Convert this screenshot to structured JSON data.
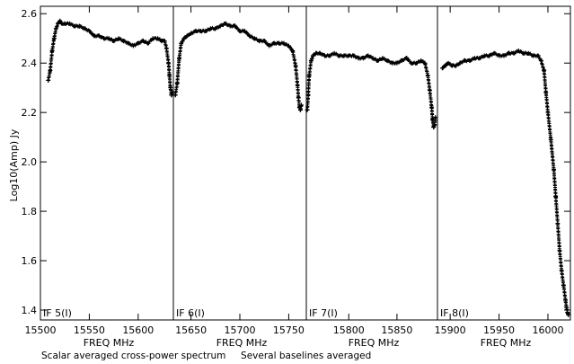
{
  "chart_data": {
    "type": "scatter",
    "ylabel": "Log10(Amp) Jy",
    "ylim": [
      1.36,
      2.63
    ],
    "yticks": [
      "1.4",
      "1.6",
      "1.8",
      "2.0",
      "2.2",
      "2.4",
      "2.6"
    ],
    "ytick_values": [
      1.4,
      1.6,
      1.8,
      2.0,
      2.2,
      2.4,
      2.6
    ],
    "marker": "plus",
    "color": "#000000",
    "grid": false,
    "caption": "Scalar averaged cross-power spectrum     Several baselines averaged",
    "panels": [
      {
        "label": "IF 5(I)",
        "xlabel": "FREQ MHz",
        "xlim": [
          15500,
          15636
        ],
        "xticks": [
          "15500",
          "15550",
          "15600"
        ],
        "xtick_values": [
          15500,
          15550,
          15600
        ],
        "x": [
          15508,
          15510,
          15512,
          15514,
          15516,
          15518,
          15520,
          15522,
          15525,
          15530,
          15535,
          15540,
          15545,
          15550,
          15555,
          15560,
          15565,
          15570,
          15575,
          15580,
          15585,
          15590,
          15595,
          15600,
          15605,
          15610,
          15615,
          15620,
          15624,
          15627,
          15629,
          15631,
          15632,
          15633,
          15634,
          15635
        ],
        "y": [
          2.33,
          2.37,
          2.45,
          2.5,
          2.54,
          2.56,
          2.57,
          2.56,
          2.56,
          2.56,
          2.55,
          2.55,
          2.54,
          2.53,
          2.51,
          2.51,
          2.5,
          2.5,
          2.49,
          2.5,
          2.49,
          2.48,
          2.47,
          2.48,
          2.49,
          2.48,
          2.5,
          2.5,
          2.49,
          2.49,
          2.46,
          2.4,
          2.35,
          2.3,
          2.27,
          2.28
        ]
      },
      {
        "label": "IF 6(I)",
        "xlabel": "FREQ MHz",
        "xlim": [
          15632,
          15768
        ],
        "xticks": [
          "15650",
          "15700",
          "15750"
        ],
        "xtick_values": [
          15650,
          15700,
          15750
        ],
        "x": [
          15634,
          15636,
          15638,
          15640,
          15643,
          15646,
          15650,
          15655,
          15660,
          15665,
          15670,
          15675,
          15680,
          15685,
          15690,
          15695,
          15700,
          15705,
          15710,
          15715,
          15720,
          15725,
          15730,
          15735,
          15740,
          15745,
          15750,
          15754,
          15757,
          15759,
          15760,
          15761,
          15762,
          15763
        ],
        "y": [
          2.27,
          2.32,
          2.42,
          2.48,
          2.5,
          2.51,
          2.52,
          2.53,
          2.53,
          2.53,
          2.54,
          2.54,
          2.55,
          2.56,
          2.55,
          2.55,
          2.53,
          2.53,
          2.51,
          2.5,
          2.49,
          2.49,
          2.47,
          2.48,
          2.48,
          2.48,
          2.47,
          2.45,
          2.39,
          2.31,
          2.26,
          2.22,
          2.21,
          2.23
        ]
      },
      {
        "label": "IF 7(I)",
        "xlabel": "FREQ MHz",
        "xlim": [
          15756,
          15892
        ],
        "xticks": [
          "15800",
          "15850"
        ],
        "xtick_values": [
          15800,
          15850
        ],
        "x": [
          15757,
          15758,
          15759,
          15761,
          15763,
          15766,
          15770,
          15775,
          15780,
          15785,
          15790,
          15795,
          15800,
          15805,
          15810,
          15815,
          15820,
          15825,
          15830,
          15835,
          15840,
          15845,
          15850,
          15855,
          15860,
          15865,
          15870,
          15875,
          15879,
          15882,
          15884,
          15886,
          15887,
          15888,
          15889,
          15890
        ],
        "y": [
          2.21,
          2.27,
          2.35,
          2.41,
          2.43,
          2.44,
          2.44,
          2.43,
          2.43,
          2.44,
          2.43,
          2.43,
          2.43,
          2.43,
          2.42,
          2.42,
          2.43,
          2.42,
          2.41,
          2.42,
          2.41,
          2.4,
          2.4,
          2.41,
          2.42,
          2.4,
          2.4,
          2.41,
          2.4,
          2.35,
          2.29,
          2.22,
          2.17,
          2.14,
          2.15,
          2.18
        ]
      },
      {
        "label": "IF 8(I)",
        "xlabel": "FREQ MHz",
        "xlim": [
          15887,
          16023
        ],
        "xticks": [
          "15900",
          "15950",
          "16000"
        ],
        "xtick_values": [
          15900,
          15950,
          16000
        ],
        "x": [
          15892,
          15895,
          15898,
          15902,
          15906,
          15910,
          15915,
          15920,
          15925,
          15930,
          15935,
          15940,
          15945,
          15950,
          15955,
          15960,
          15965,
          15970,
          15975,
          15980,
          15985,
          15990,
          15993,
          15996,
          15998,
          16000,
          16003,
          16006,
          16008,
          16010,
          16012,
          16014,
          16016,
          16018,
          16019,
          16020,
          16021
        ],
        "y": [
          2.38,
          2.39,
          2.4,
          2.39,
          2.39,
          2.4,
          2.41,
          2.41,
          2.42,
          2.42,
          2.43,
          2.43,
          2.44,
          2.43,
          2.43,
          2.44,
          2.44,
          2.45,
          2.44,
          2.44,
          2.43,
          2.43,
          2.41,
          2.37,
          2.28,
          2.2,
          2.09,
          1.97,
          1.86,
          1.75,
          1.64,
          1.56,
          1.5,
          1.44,
          1.41,
          1.39,
          1.38
        ]
      }
    ]
  }
}
